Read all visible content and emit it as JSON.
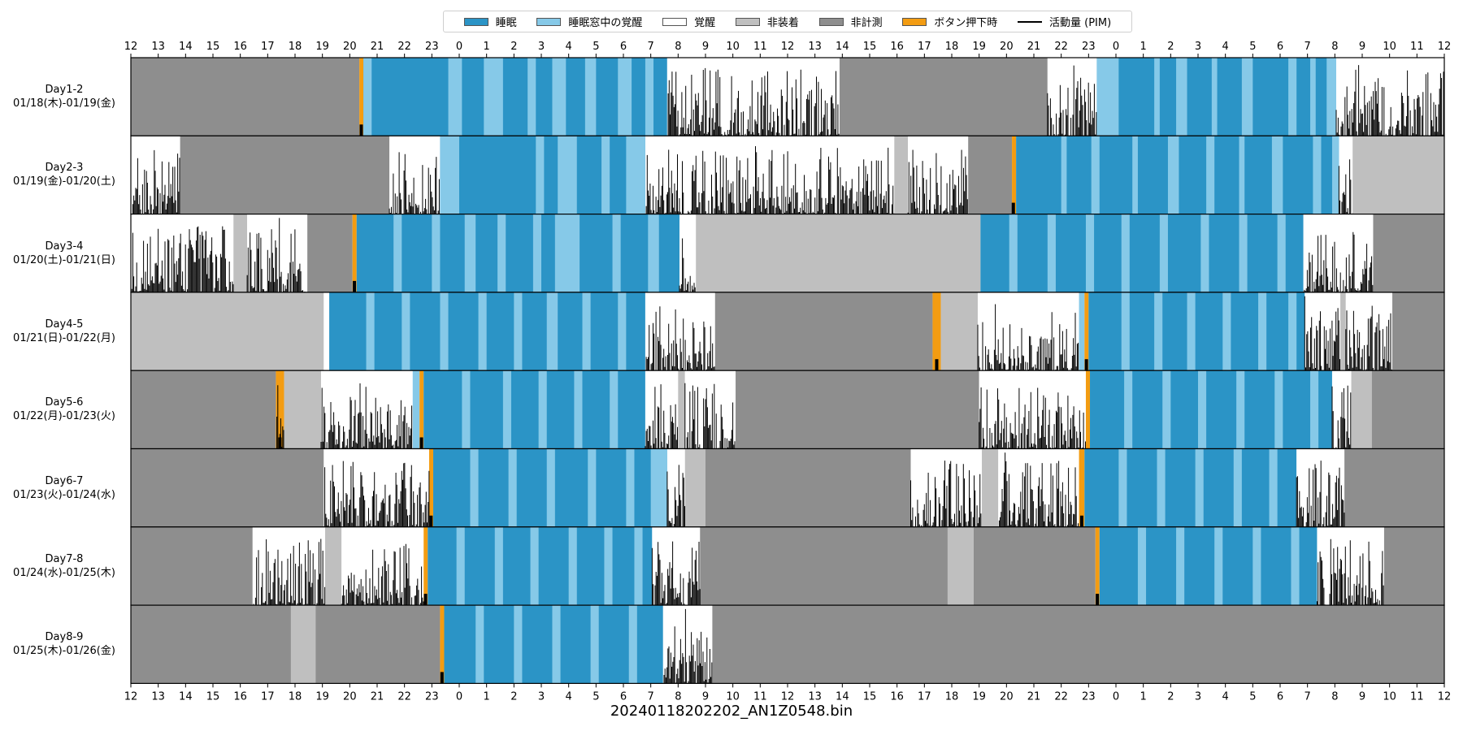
{
  "chart_data": {
    "type": "actigram",
    "title": "20240118202202_AN1Z0548.bin",
    "x_tick_labels": [
      "12",
      "13",
      "14",
      "15",
      "16",
      "17",
      "18",
      "19",
      "20",
      "21",
      "22",
      "23",
      "0",
      "1",
      "2",
      "3",
      "4",
      "5",
      "6",
      "7",
      "8",
      "9",
      "10",
      "11",
      "12",
      "13",
      "14",
      "15",
      "16",
      "17",
      "18",
      "19",
      "20",
      "21",
      "22",
      "23",
      "0",
      "1",
      "2",
      "3",
      "4",
      "5",
      "6",
      "7",
      "8",
      "9",
      "10",
      "11",
      "12"
    ],
    "x_range_hours": [
      0,
      48
    ],
    "x_origin_clock": "12:00",
    "legend": [
      {
        "key": "sleep",
        "label": "睡眠",
        "color": "#2b94c6"
      },
      {
        "key": "wake_in_sleep",
        "label": "睡眠窓中の覚醒",
        "color": "#86c9e8"
      },
      {
        "key": "wake",
        "label": "覚醒",
        "color": "#ffffff"
      },
      {
        "key": "nonwear",
        "label": "非装着",
        "color": "#bfbfbf"
      },
      {
        "key": "unmeasured",
        "label": "非計測",
        "color": "#8e8e8e"
      },
      {
        "key": "button",
        "label": "ボタン押下時",
        "color": "#f39c12"
      },
      {
        "key": "activity",
        "label": "活動量 (PIM)",
        "color": "#000000"
      }
    ],
    "rows": [
      {
        "label1": "Day1-2",
        "label2": "01/18(木)-01/19(金)",
        "segments": [
          [
            "unmeasured",
            0,
            8.35
          ],
          [
            "button",
            8.35,
            8.5
          ],
          [
            "sleep",
            8.5,
            19.6
          ],
          [
            "wake",
            19.6,
            25.9
          ],
          [
            "unmeasured",
            25.9,
            33.5
          ],
          [
            "wake",
            33.5,
            35.3
          ],
          [
            "sleep",
            35.3,
            44.05
          ],
          [
            "wake",
            44.05,
            48
          ]
        ],
        "wake_in_sleep": [
          [
            8.5,
            8.8
          ],
          [
            11.6,
            12.1
          ],
          [
            12.9,
            13.6
          ],
          [
            14.5,
            14.8
          ],
          [
            15.4,
            15.9
          ],
          [
            16.6,
            17.0
          ],
          [
            17.8,
            18.3
          ],
          [
            18.8,
            19.1
          ],
          [
            35.3,
            36.1
          ],
          [
            37.4,
            37.6
          ],
          [
            38.2,
            38.6
          ],
          [
            39.5,
            39.7
          ],
          [
            40.6,
            41.0
          ],
          [
            42.3,
            42.6
          ],
          [
            43.1,
            43.3
          ],
          [
            43.7,
            44.05
          ]
        ],
        "activity_spans": [
          [
            19.6,
            25.9
          ],
          [
            33.5,
            35.3
          ],
          [
            44.05,
            48
          ]
        ],
        "buttons": [
          8.42
        ]
      },
      {
        "label1": "Day2-3",
        "label2": "01/19(金)-01/20(土)",
        "segments": [
          [
            "wake",
            0,
            1.8
          ],
          [
            "unmeasured",
            1.8,
            9.45
          ],
          [
            "wake",
            9.45,
            11.3
          ],
          [
            "sleep",
            11.3,
            18.8
          ],
          [
            "wake",
            18.8,
            27.9
          ],
          [
            "nonwear",
            27.9,
            28.4
          ],
          [
            "wake",
            28.4,
            30.6
          ],
          [
            "unmeasured",
            30.6,
            32.2
          ],
          [
            "button",
            32.2,
            32.35
          ],
          [
            "sleep",
            32.35,
            44.15
          ],
          [
            "wake",
            44.15,
            44.65
          ],
          [
            "nonwear",
            44.65,
            48
          ]
        ],
        "wake_in_sleep": [
          [
            11.3,
            12.0
          ],
          [
            14.8,
            15.1
          ],
          [
            15.6,
            16.3
          ],
          [
            17.2,
            17.5
          ],
          [
            18.1,
            18.8
          ],
          [
            34.0,
            34.2
          ],
          [
            35.1,
            35.4
          ],
          [
            36.6,
            36.8
          ],
          [
            37.9,
            38.3
          ],
          [
            39.3,
            39.6
          ],
          [
            40.5,
            40.7
          ],
          [
            41.7,
            42.1
          ],
          [
            43.2,
            43.5
          ],
          [
            43.9,
            44.15
          ]
        ],
        "activity_spans": [
          [
            0,
            1.8
          ],
          [
            9.45,
            11.3
          ],
          [
            18.8,
            27.9
          ],
          [
            28.4,
            30.6
          ],
          [
            44.15,
            44.65
          ]
        ],
        "buttons": [
          32.25
        ]
      },
      {
        "label1": "Day3-4",
        "label2": "01/20(土)-01/21(日)",
        "segments": [
          [
            "wake",
            0,
            3.75
          ],
          [
            "nonwear",
            3.75,
            4.25
          ],
          [
            "wake",
            4.25,
            6.45
          ],
          [
            "unmeasured",
            6.45,
            8.1
          ],
          [
            "button",
            8.1,
            8.25
          ],
          [
            "sleep",
            8.25,
            20.05
          ],
          [
            "wake",
            20.05,
            20.65
          ],
          [
            "nonwear",
            20.65,
            31.05
          ],
          [
            "sleep",
            31.05,
            42.85
          ],
          [
            "wake",
            42.85,
            45.4
          ],
          [
            "unmeasured",
            45.4,
            48
          ]
        ],
        "wake_in_sleep": [
          [
            9.6,
            9.9
          ],
          [
            11.0,
            11.3
          ],
          [
            12.2,
            12.6
          ],
          [
            13.4,
            13.7
          ],
          [
            14.7,
            15.0
          ],
          [
            15.5,
            16.4
          ],
          [
            17.6,
            17.9
          ],
          [
            18.9,
            19.3
          ],
          [
            32.1,
            32.4
          ],
          [
            33.5,
            33.8
          ],
          [
            34.9,
            35.2
          ],
          [
            36.2,
            36.5
          ],
          [
            37.6,
            37.9
          ],
          [
            39.1,
            39.4
          ],
          [
            40.5,
            40.8
          ],
          [
            41.9,
            42.2
          ]
        ],
        "activity_spans": [
          [
            0,
            3.75
          ],
          [
            4.25,
            6.45
          ],
          [
            20.05,
            20.65
          ],
          [
            42.85,
            45.4
          ]
        ],
        "buttons": [
          8.17
        ]
      },
      {
        "label1": "Day4-5",
        "label2": "01/21(日)-01/22(月)",
        "segments": [
          [
            "nonwear",
            0,
            7.05
          ],
          [
            "wake",
            7.05,
            7.25
          ],
          [
            "sleep",
            7.25,
            18.8
          ],
          [
            "wake",
            18.8,
            21.35
          ],
          [
            "unmeasured",
            21.35,
            29.3
          ],
          [
            "button",
            29.3,
            29.6
          ],
          [
            "nonwear",
            29.6,
            30.95
          ],
          [
            "wake",
            30.95,
            34.65
          ],
          [
            "wake_in_sleep",
            34.65,
            34.85
          ],
          [
            "button",
            34.85,
            35.0
          ],
          [
            "sleep",
            35.0,
            42.9
          ],
          [
            "wake",
            42.9,
            44.2
          ],
          [
            "nonwear",
            44.2,
            44.4
          ],
          [
            "wake",
            44.4,
            46.1
          ],
          [
            "unmeasured",
            46.1,
            48
          ]
        ],
        "wake_in_sleep": [
          [
            8.6,
            8.9
          ],
          [
            9.9,
            10.2
          ],
          [
            11.3,
            11.6
          ],
          [
            12.7,
            13.0
          ],
          [
            14.0,
            14.3
          ],
          [
            15.2,
            15.6
          ],
          [
            16.5,
            16.8
          ],
          [
            17.8,
            18.1
          ],
          [
            36.2,
            36.5
          ],
          [
            37.4,
            37.7
          ],
          [
            38.6,
            38.9
          ],
          [
            39.9,
            40.2
          ],
          [
            41.2,
            41.5
          ],
          [
            42.3,
            42.6
          ]
        ],
        "activity_spans": [
          [
            18.8,
            21.35
          ],
          [
            30.95,
            34.65
          ],
          [
            42.9,
            44.2
          ],
          [
            44.4,
            46.1
          ]
        ],
        "buttons": [
          29.45,
          34.92
        ]
      },
      {
        "label1": "Day5-6",
        "label2": "01/22(月)-01/23(火)",
        "segments": [
          [
            "unmeasured",
            0,
            5.3
          ],
          [
            "button",
            5.3,
            5.6
          ],
          [
            "nonwear",
            5.6,
            6.95
          ],
          [
            "wake",
            6.95,
            10.3
          ],
          [
            "wake_in_sleep",
            10.3,
            10.55
          ],
          [
            "button",
            10.55,
            10.7
          ],
          [
            "sleep",
            10.7,
            18.8
          ],
          [
            "wake",
            18.8,
            20.0
          ],
          [
            "nonwear",
            20.0,
            20.25
          ],
          [
            "wake",
            20.25,
            22.1
          ],
          [
            "unmeasured",
            22.1,
            31.0
          ],
          [
            "wake",
            31.0,
            34.9
          ],
          [
            "button",
            34.9,
            35.05
          ],
          [
            "sleep",
            35.05,
            43.9
          ],
          [
            "wake",
            43.9,
            44.6
          ],
          [
            "nonwear",
            44.6,
            45.35
          ],
          [
            "unmeasured",
            45.35,
            48
          ]
        ],
        "wake_in_sleep": [
          [
            12.1,
            12.4
          ],
          [
            13.6,
            13.9
          ],
          [
            14.9,
            15.2
          ],
          [
            16.2,
            16.5
          ],
          [
            17.5,
            17.8
          ],
          [
            36.3,
            36.6
          ],
          [
            37.7,
            38.0
          ],
          [
            39.0,
            39.3
          ],
          [
            40.4,
            40.7
          ],
          [
            41.8,
            42.1
          ],
          [
            43.1,
            43.4
          ]
        ],
        "activity_spans": [
          [
            5.3,
            5.6
          ],
          [
            6.95,
            10.3
          ],
          [
            18.8,
            20.0
          ],
          [
            20.25,
            22.1
          ],
          [
            31.0,
            34.9
          ],
          [
            43.9,
            44.6
          ]
        ],
        "buttons": [
          5.45,
          10.62
        ]
      },
      {
        "label1": "Day6-7",
        "label2": "01/23(火)-01/24(水)",
        "segments": [
          [
            "unmeasured",
            0,
            7.05
          ],
          [
            "wake",
            7.05,
            10.9
          ],
          [
            "button",
            10.9,
            11.05
          ],
          [
            "sleep",
            11.05,
            19.6
          ],
          [
            "wake",
            19.6,
            20.25
          ],
          [
            "nonwear",
            20.25,
            21.0
          ],
          [
            "unmeasured",
            21.0,
            28.5
          ],
          [
            "wake",
            28.5,
            31.1
          ],
          [
            "nonwear",
            31.1,
            31.7
          ],
          [
            "wake",
            31.7,
            34.65
          ],
          [
            "button",
            34.65,
            34.85
          ],
          [
            "sleep",
            34.85,
            42.6
          ],
          [
            "wake",
            42.6,
            44.35
          ],
          [
            "unmeasured",
            44.35,
            48
          ]
        ],
        "wake_in_sleep": [
          [
            12.4,
            12.7
          ],
          [
            13.8,
            14.1
          ],
          [
            15.2,
            15.5
          ],
          [
            16.7,
            17.0
          ],
          [
            18.1,
            18.4
          ],
          [
            19.0,
            19.6
          ],
          [
            36.1,
            36.4
          ],
          [
            37.5,
            37.8
          ],
          [
            38.9,
            39.2
          ],
          [
            40.3,
            40.6
          ],
          [
            41.6,
            41.9
          ]
        ],
        "activity_spans": [
          [
            7.05,
            10.9
          ],
          [
            19.6,
            20.25
          ],
          [
            28.5,
            31.1
          ],
          [
            31.7,
            34.65
          ],
          [
            42.6,
            44.35
          ]
        ],
        "buttons": [
          10.97,
          34.75
        ]
      },
      {
        "label1": "Day7-8",
        "label2": "01/24(水)-01/25(木)",
        "segments": [
          [
            "unmeasured",
            0,
            4.45
          ],
          [
            "wake",
            4.45,
            7.1
          ],
          [
            "nonwear",
            7.1,
            7.7
          ],
          [
            "wake",
            7.7,
            10.7
          ],
          [
            "button",
            10.7,
            10.85
          ],
          [
            "sleep",
            10.85,
            19.05
          ],
          [
            "wake",
            19.05,
            20.8
          ],
          [
            "unmeasured",
            20.8,
            29.85
          ],
          [
            "nonwear",
            29.85,
            30.8
          ],
          [
            "unmeasured",
            30.8,
            35.25
          ],
          [
            "button",
            35.25,
            35.4
          ],
          [
            "sleep",
            35.4,
            43.35
          ],
          [
            "wake",
            43.35,
            45.8
          ],
          [
            "unmeasured",
            45.8,
            48
          ]
        ],
        "wake_in_sleep": [
          [
            11.9,
            12.2
          ],
          [
            13.3,
            13.6
          ],
          [
            14.6,
            14.9
          ],
          [
            16.0,
            16.3
          ],
          [
            17.3,
            17.6
          ],
          [
            18.4,
            18.7
          ],
          [
            36.8,
            37.1
          ],
          [
            38.2,
            38.5
          ],
          [
            39.6,
            39.9
          ],
          [
            41.0,
            41.3
          ],
          [
            42.4,
            42.7
          ]
        ],
        "activity_spans": [
          [
            4.45,
            7.1
          ],
          [
            7.7,
            10.7
          ],
          [
            19.05,
            20.8
          ],
          [
            43.35,
            45.8
          ]
        ],
        "buttons": [
          10.77,
          35.32
        ]
      },
      {
        "label1": "Day8-9",
        "label2": "01/25(木)-01/26(金)",
        "segments": [
          [
            "unmeasured",
            0,
            5.85
          ],
          [
            "nonwear",
            5.85,
            6.75
          ],
          [
            "unmeasured",
            6.75,
            11.3
          ],
          [
            "button",
            11.3,
            11.45
          ],
          [
            "sleep",
            11.45,
            19.45
          ],
          [
            "wake",
            19.45,
            21.25
          ],
          [
            "unmeasured",
            21.25,
            48
          ]
        ],
        "wake_in_sleep": [
          [
            12.6,
            12.9
          ],
          [
            14.0,
            14.3
          ],
          [
            15.4,
            15.7
          ],
          [
            16.8,
            17.1
          ],
          [
            18.2,
            18.5
          ]
        ],
        "activity_spans": [
          [
            19.45,
            21.25
          ]
        ],
        "buttons": [
          11.37
        ]
      }
    ]
  }
}
